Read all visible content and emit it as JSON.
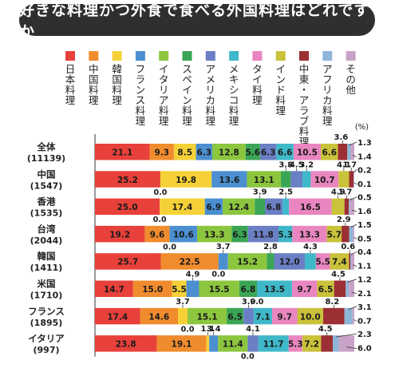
{
  "chart_data": {
    "type": "bar",
    "stacked": true,
    "orientation": "horizontal",
    "title": "好きな料理かつ外食で食べる外国料理はどれですか",
    "unit": "(%)",
    "xlim": [
      0,
      100
    ],
    "legend_position": "top",
    "categories": [
      {
        "name": "全体",
        "n": "(11139)"
      },
      {
        "name": "中国",
        "n": "(1547)"
      },
      {
        "name": "香港",
        "n": "(1535)"
      },
      {
        "name": "台湾",
        "n": "(2044)"
      },
      {
        "name": "韓国",
        "n": "(1411)"
      },
      {
        "name": "米国",
        "n": "(1710)"
      },
      {
        "name": "フランス",
        "n": "(1895)"
      },
      {
        "name": "イタリア",
        "n": "(997)"
      }
    ],
    "series": [
      {
        "name": "日本料理",
        "color": "#e8403a",
        "values": [
          21.1,
          25.2,
          25.0,
          19.2,
          25.7,
          14.7,
          17.4,
          23.8
        ]
      },
      {
        "name": "中国料理",
        "color": "#f08c2e",
        "values": [
          9.3,
          0.0,
          0.0,
          9.6,
          22.5,
          15.0,
          14.6,
          19.1
        ]
      },
      {
        "name": "韓国料理",
        "color": "#f5d137",
        "values": [
          8.5,
          19.8,
          17.4,
          0.0,
          0.0,
          5.5,
          3.7,
          1.1
        ]
      },
      {
        "name": "フランス料理",
        "color": "#4b8fd1",
        "values": [
          6.3,
          13.6,
          6.9,
          10.6,
          3.7,
          4.9,
          0.0,
          3.4
        ]
      },
      {
        "name": "イタリア料理",
        "color": "#8cc63f",
        "values": [
          12.8,
          13.1,
          12.4,
          13.3,
          15.2,
          15.5,
          15.1,
          11.4
        ]
      },
      {
        "name": "スペイン料理",
        "color": "#3aa655",
        "values": [
          5.6,
          3.8,
          3.9,
          6.3,
          2.8,
          6.8,
          6.5,
          0.0
        ]
      },
      {
        "name": "アメリカ料理",
        "color": "#6b7fc4",
        "values": [
          6.3,
          4.5,
          6.8,
          11.8,
          12.0,
          0.0,
          3.9,
          4.1
        ]
      },
      {
        "name": "メキシコ料理",
        "color": "#3fb8c9",
        "values": [
          6.6,
          3.2,
          2.5,
          5.3,
          4.3,
          13.5,
          7.1,
          11.7
        ]
      },
      {
        "name": "タイ料理",
        "color": "#e986c0",
        "values": [
          10.5,
          10.7,
          16.5,
          13.3,
          5.5,
          9.7,
          9.7,
          5.3
        ]
      },
      {
        "name": "インド料理",
        "color": "#c9c23a",
        "values": [
          6.6,
          4.1,
          4.9,
          5.7,
          7.4,
          6.5,
          10.0,
          7.2
        ]
      },
      {
        "name": "中東・アラブ料理",
        "color": "#9c2f33",
        "values": [
          3.6,
          1.7,
          1.7,
          2.9,
          0.6,
          4.5,
          8.2,
          4.5
        ]
      },
      {
        "name": "アフリカ料理",
        "color": "#8fb6d9",
        "values": [
          1.3,
          0.2,
          0.5,
          1.5,
          0.4,
          1.2,
          3.1,
          2.3
        ]
      },
      {
        "name": "その他",
        "color": "#c9a3c7",
        "values": [
          1.4,
          0.1,
          1.6,
          0.5,
          1.1,
          2.1,
          0.7,
          6.0
        ]
      }
    ]
  }
}
